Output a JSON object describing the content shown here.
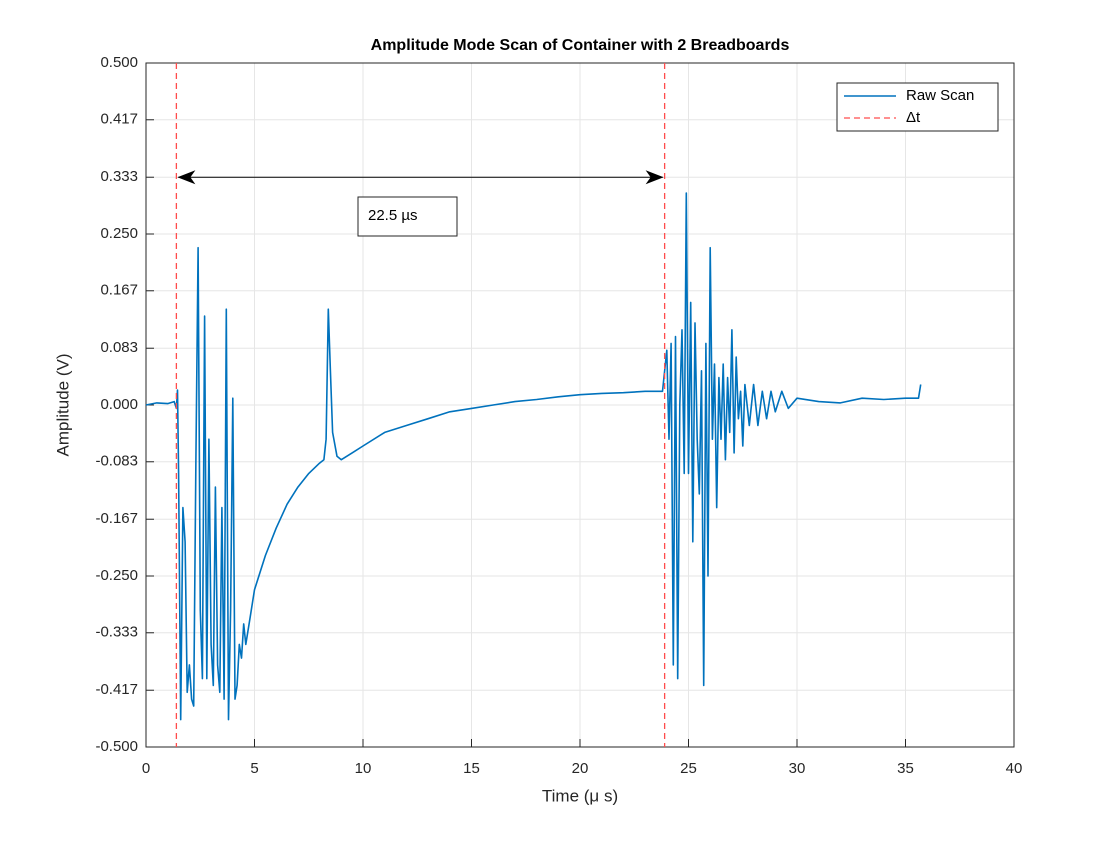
{
  "chart_data": {
    "type": "line",
    "title": "Amplitude Mode Scan of Container with 2 Breadboards",
    "xlabel": "Time (μ s)",
    "ylabel": "Amplitude (V)",
    "xlim": [
      0,
      40
    ],
    "xticks": [
      0,
      5,
      10,
      15,
      20,
      25,
      30,
      35,
      40
    ],
    "ylim": [
      -0.5,
      0.5
    ],
    "yticks": [
      {
        "value": 0.5,
        "label": "0.500"
      },
      0.417,
      0.333,
      {
        "value": 0.25,
        "label": "0.250"
      },
      0.167,
      0.083,
      {
        "value": 0,
        "label": "0.000"
      },
      -0.083,
      -0.167,
      {
        "value": -0.25,
        "label": "-0.250"
      },
      -0.333,
      -0.417,
      {
        "value": -0.5,
        "label": "-0.500"
      }
    ],
    "grid": true,
    "legend": "northeast",
    "x": [
      0,
      0.5,
      1.0,
      1.3,
      1.4,
      1.45,
      1.5,
      1.6,
      1.7,
      1.8,
      1.9,
      2.0,
      2.1,
      2.2,
      2.3,
      2.4,
      2.5,
      2.6,
      2.7,
      2.8,
      2.9,
      3.0,
      3.1,
      3.2,
      3.3,
      3.4,
      3.5,
      3.6,
      3.7,
      3.8,
      3.9,
      4.0,
      4.1,
      4.2,
      4.3,
      4.4,
      4.5,
      4.6,
      4.8,
      5.0,
      5.5,
      6.0,
      6.5,
      7.0,
      7.5,
      8.0,
      8.2,
      8.3,
      8.4,
      8.5,
      8.6,
      8.8,
      9.0,
      9.5,
      10,
      11,
      12,
      13,
      14,
      15,
      16,
      17,
      18,
      19,
      20,
      21,
      22,
      23,
      23.8,
      24.0,
      24.1,
      24.2,
      24.3,
      24.4,
      24.5,
      24.6,
      24.7,
      24.8,
      24.9,
      25.0,
      25.1,
      25.2,
      25.3,
      25.4,
      25.5,
      25.6,
      25.7,
      25.8,
      25.9,
      26.0,
      26.1,
      26.2,
      26.3,
      26.4,
      26.5,
      26.6,
      26.7,
      26.8,
      26.9,
      27.0,
      27.1,
      27.2,
      27.3,
      27.4,
      27.5,
      27.6,
      27.8,
      28.0,
      28.2,
      28.4,
      28.6,
      28.8,
      29.0,
      29.3,
      29.6,
      30,
      31,
      32,
      33,
      34,
      35,
      35.6,
      35.7
    ],
    "series": [
      {
        "name": "Raw Scan",
        "color": "#0072bd",
        "values": [
          0.0,
          0.003,
          0.002,
          0.005,
          -0.005,
          0.022,
          -0.1,
          -0.46,
          -0.15,
          -0.2,
          -0.42,
          -0.38,
          -0.43,
          -0.44,
          -0.08,
          0.23,
          -0.3,
          -0.4,
          0.13,
          -0.4,
          -0.05,
          -0.35,
          -0.41,
          -0.12,
          -0.38,
          -0.42,
          -0.15,
          -0.43,
          0.14,
          -0.46,
          -0.3,
          0.01,
          -0.43,
          -0.41,
          -0.35,
          -0.37,
          -0.32,
          -0.35,
          -0.31,
          -0.27,
          -0.22,
          -0.18,
          -0.145,
          -0.12,
          -0.1,
          -0.085,
          -0.08,
          -0.05,
          0.14,
          0.05,
          -0.04,
          -0.075,
          -0.08,
          -0.07,
          -0.06,
          -0.04,
          -0.03,
          -0.02,
          -0.01,
          -0.005,
          0.0,
          0.005,
          0.008,
          0.012,
          0.015,
          0.017,
          0.018,
          0.02,
          0.02,
          0.08,
          -0.05,
          0.09,
          -0.38,
          0.1,
          -0.4,
          0.0,
          0.11,
          -0.1,
          0.31,
          -0.1,
          0.15,
          -0.2,
          0.12,
          -0.05,
          -0.13,
          0.05,
          -0.41,
          0.09,
          -0.25,
          0.23,
          -0.05,
          0.06,
          -0.15,
          0.04,
          -0.05,
          0.06,
          -0.08,
          0.04,
          -0.04,
          0.11,
          -0.07,
          0.07,
          -0.02,
          0.02,
          -0.06,
          0.03,
          -0.03,
          0.03,
          -0.03,
          0.02,
          -0.02,
          0.02,
          -0.01,
          0.02,
          -0.005,
          0.01,
          0.005,
          0.003,
          0.01,
          0.008,
          0.01,
          0.01,
          0.03
        ]
      }
    ],
    "vlines": {
      "name": "Δt",
      "color": "#ff4d4d",
      "x": [
        1.4,
        23.9
      ]
    },
    "annotation": {
      "text": "22.5 µs",
      "y": 0.333
    }
  }
}
